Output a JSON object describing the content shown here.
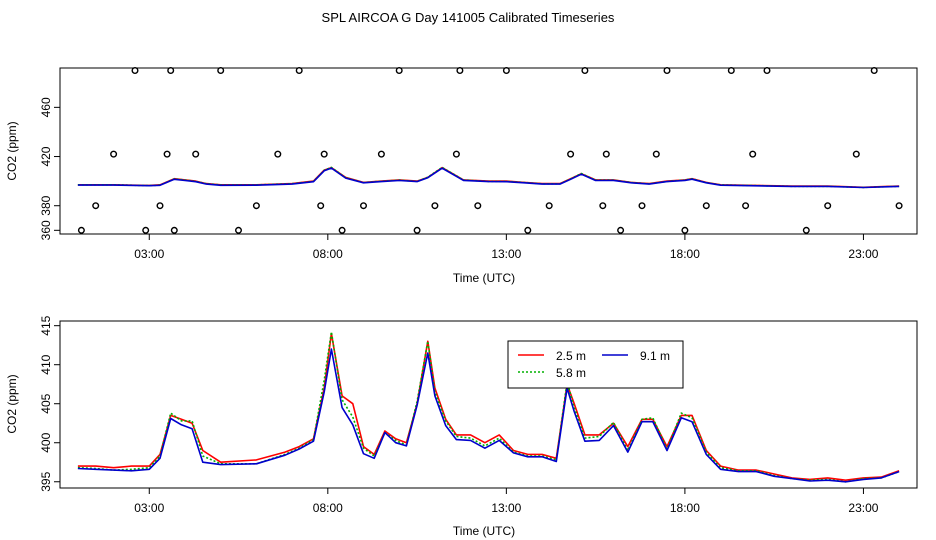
{
  "title": "SPL AIRCOA G  Day 141005  Calibrated Timeseries",
  "chart_data": [
    {
      "type": "line+scatter",
      "ylabel": "CO2 (ppm)",
      "xlabel": "Time (UTC)",
      "xlim": [
        0.5,
        24.5
      ],
      "ylim": [
        357,
        492
      ],
      "xticks": [
        3,
        8,
        13,
        18,
        23
      ],
      "xtick_labels": [
        "03:00",
        "08:00",
        "13:00",
        "18:00",
        "23:00"
      ],
      "yticks": [
        360,
        380,
        420,
        460
      ],
      "ytick_labels": [
        "360",
        "380",
        "420",
        "460"
      ],
      "series": [
        {
          "name": "2.5 m",
          "color": "#ff0000",
          "x": [
            1,
            2,
            3,
            3.3,
            3.7,
            4,
            4.3,
            4.6,
            5,
            6,
            7,
            7.6,
            7.9,
            8.1,
            8.5,
            9,
            9.5,
            10,
            10.5,
            10.8,
            11.2,
            11.8,
            12.5,
            13,
            13.5,
            14,
            14.5,
            14.8,
            15.1,
            15.5,
            16,
            16.5,
            17,
            17.5,
            18,
            18.2,
            18.6,
            19,
            20,
            21,
            22,
            23,
            24
          ],
          "y": [
            397,
            397,
            396.5,
            397,
            402,
            401,
            400,
            398,
            397,
            397,
            398,
            400,
            409,
            411,
            403,
            399,
            400,
            401,
            400,
            403,
            411,
            401,
            400,
            400,
            399,
            398,
            398,
            402,
            406,
            401,
            401,
            399,
            398,
            400,
            401,
            402,
            399,
            397,
            396.5,
            396,
            396,
            395,
            396
          ]
        },
        {
          "name": "5.8 m",
          "color": "#00b000",
          "dash": "2,2",
          "x": [
            1,
            2,
            3,
            3.3,
            3.7,
            4,
            4.3,
            4.6,
            5,
            6,
            7,
            7.6,
            7.9,
            8.1,
            8.5,
            9,
            9.5,
            10,
            10.5,
            10.8,
            11.2,
            11.8,
            12.5,
            13,
            13.5,
            14,
            14.5,
            14.8,
            15.1,
            15.5,
            16,
            16.5,
            17,
            17.5,
            18,
            18.2,
            18.6,
            19,
            20,
            21,
            22,
            23,
            24
          ],
          "y": [
            397,
            397,
            396.4,
            396.8,
            401.8,
            400.9,
            399.8,
            397.9,
            396.9,
            396.9,
            397.9,
            399.8,
            408.8,
            411.2,
            402.8,
            398.8,
            399.9,
            400.8,
            399.8,
            403.2,
            411.2,
            400.9,
            399.8,
            399.8,
            398.9,
            397.8,
            397.8,
            401.8,
            406.2,
            400.8,
            400.8,
            398.9,
            397.8,
            399.8,
            400.9,
            401.9,
            398.8,
            396.9,
            396.4,
            395.8,
            395.8,
            394.9,
            395.8
          ]
        },
        {
          "name": "9.1 m",
          "color": "#0000cc",
          "x": [
            1,
            2,
            3,
            3.3,
            3.7,
            4,
            4.3,
            4.6,
            5,
            6,
            7,
            7.6,
            7.9,
            8.1,
            8.5,
            9,
            9.5,
            10,
            10.5,
            10.8,
            11.2,
            11.8,
            12.5,
            13,
            13.5,
            14,
            14.5,
            14.8,
            15.1,
            15.5,
            16,
            16.5,
            17,
            17.5,
            18,
            18.2,
            18.6,
            19,
            20,
            21,
            22,
            23,
            24
          ],
          "y": [
            396.8,
            396.8,
            396.3,
            396.6,
            401.5,
            400.5,
            399.5,
            397.6,
            396.6,
            396.7,
            397.6,
            399.5,
            408.4,
            410.6,
            402.5,
            398.6,
            399.6,
            400.5,
            399.6,
            402.8,
            410.5,
            400.6,
            399.6,
            399.5,
            398.6,
            397.6,
            397.6,
            401.5,
            405.6,
            400.5,
            400.6,
            398.6,
            397.6,
            399.6,
            400.6,
            401.6,
            398.6,
            396.7,
            396.2,
            395.7,
            395.7,
            394.8,
            395.7
          ]
        }
      ],
      "points": {
        "x": [
          1.1,
          1.5,
          2.0,
          2.6,
          2.9,
          3.3,
          3.5,
          3.6,
          3.7,
          4.3,
          5.0,
          5.5,
          6.0,
          6.6,
          7.2,
          7.8,
          7.9,
          8.4,
          9.0,
          9.5,
          10.0,
          10.5,
          11.0,
          11.6,
          11.7,
          12.2,
          13.0,
          13.6,
          14.2,
          14.8,
          15.2,
          15.7,
          15.8,
          16.2,
          16.8,
          17.2,
          17.5,
          18.0,
          18.6,
          19.3,
          19.7,
          19.9,
          20.3,
          21.4,
          22.0,
          22.8,
          23.3,
          24.0
        ],
        "y": [
          360,
          380,
          422,
          490,
          360,
          380,
          422,
          490,
          360,
          422,
          490,
          360,
          380,
          422,
          490,
          380,
          422,
          360,
          380,
          422,
          490,
          360,
          380,
          422,
          490,
          380,
          490,
          360,
          380,
          422,
          490,
          380,
          422,
          360,
          380,
          422,
          490,
          360,
          380,
          490,
          380,
          422,
          490,
          360,
          380,
          422,
          490,
          380
        ]
      }
    },
    {
      "type": "line",
      "ylabel": "CO2 (ppm)",
      "xlabel": "Time (UTC)",
      "xlim": [
        0.5,
        24.5
      ],
      "ylim": [
        394.2,
        415.6
      ],
      "xticks": [
        3,
        8,
        13,
        18,
        23
      ],
      "xtick_labels": [
        "03:00",
        "08:00",
        "13:00",
        "18:00",
        "23:00"
      ],
      "yticks": [
        395,
        400,
        405,
        410,
        415
      ],
      "ytick_labels": [
        "395",
        "400",
        "405",
        "410",
        "415"
      ],
      "legend": {
        "position": "top-right-center",
        "entries": [
          "2.5 m",
          "5.8 m",
          "9.1 m"
        ]
      },
      "series": [
        {
          "name": "2.5 m",
          "color": "#ff0000",
          "x": [
            1,
            1.5,
            2,
            2.5,
            3,
            3.3,
            3.6,
            3.9,
            4.2,
            4.5,
            5,
            6,
            6.8,
            7.2,
            7.6,
            7.9,
            8.1,
            8.4,
            8.7,
            9.0,
            9.3,
            9.6,
            9.9,
            10.2,
            10.5,
            10.8,
            11.0,
            11.3,
            11.6,
            12.0,
            12.4,
            12.8,
            13.2,
            13.6,
            14.0,
            14.4,
            14.7,
            14.9,
            15.2,
            15.6,
            16.0,
            16.4,
            16.8,
            17.1,
            17.5,
            17.9,
            18.2,
            18.6,
            19.0,
            19.5,
            20,
            20.5,
            21,
            21.5,
            22,
            22.5,
            23,
            23.5,
            24
          ],
          "y": [
            397,
            397,
            396.8,
            397,
            397,
            398.5,
            403.5,
            403,
            402.5,
            399,
            397.5,
            397.8,
            398.8,
            399.5,
            400.5,
            407,
            414,
            406,
            405,
            399.5,
            398.5,
            401.5,
            400.5,
            400,
            405,
            413,
            407,
            403,
            401,
            401,
            400,
            401,
            399,
            398.5,
            398.5,
            398,
            407.5,
            405,
            401,
            401,
            402.5,
            399.5,
            403,
            403,
            399.5,
            403.5,
            403.5,
            399,
            397,
            396.5,
            396.5,
            396,
            395.5,
            395.3,
            395.5,
            395.2,
            395.5,
            395.6,
            396.4
          ]
        },
        {
          "name": "5.8 m",
          "color": "#00b000",
          "dash": "2,2",
          "x": [
            1,
            1.5,
            2,
            2.5,
            3,
            3.3,
            3.6,
            3.9,
            4.2,
            4.5,
            5,
            6,
            6.8,
            7.2,
            7.6,
            7.9,
            8.1,
            8.4,
            8.7,
            9.0,
            9.3,
            9.6,
            9.9,
            10.2,
            10.5,
            10.8,
            11.0,
            11.3,
            11.6,
            12.0,
            12.4,
            12.8,
            13.2,
            13.6,
            14.0,
            14.4,
            14.7,
            14.9,
            15.2,
            15.6,
            16.0,
            16.4,
            16.8,
            17.1,
            17.5,
            17.9,
            18.2,
            18.6,
            19.0,
            19.5,
            20,
            20.5,
            21,
            21.5,
            22,
            22.5,
            23,
            23.5,
            24
          ],
          "y": [
            396.8,
            396.7,
            396.5,
            396.6,
            396.8,
            398.3,
            403.8,
            402.8,
            402.8,
            398.3,
            397.3,
            397.3,
            398.5,
            399.3,
            400.4,
            408,
            414.2,
            405.5,
            403.3,
            399.3,
            398.3,
            401.3,
            400.3,
            399.7,
            405.3,
            413,
            406.5,
            402.8,
            400.8,
            400.6,
            399.6,
            400.6,
            398.8,
            398.3,
            398.3,
            397.8,
            407.8,
            404.5,
            400.6,
            400.8,
            402.6,
            399,
            403,
            403.2,
            399.2,
            403.8,
            403.2,
            398.8,
            396.8,
            396.4,
            396.4,
            395.8,
            395.4,
            395.2,
            395.3,
            395,
            395.4,
            395.5,
            396.3
          ]
        },
        {
          "name": "9.1 m",
          "color": "#0000cc",
          "x": [
            1,
            1.5,
            2,
            2.5,
            3,
            3.3,
            3.6,
            3.9,
            4.2,
            4.5,
            5,
            6,
            6.8,
            7.2,
            7.6,
            7.9,
            8.1,
            8.4,
            8.7,
            9.0,
            9.3,
            9.6,
            9.9,
            10.2,
            10.5,
            10.8,
            11.0,
            11.3,
            11.6,
            12.0,
            12.4,
            12.8,
            13.2,
            13.6,
            14.0,
            14.4,
            14.7,
            14.9,
            15.2,
            15.6,
            16.0,
            16.4,
            16.8,
            17.1,
            17.5,
            17.9,
            18.2,
            18.6,
            19.0,
            19.5,
            20,
            20.5,
            21,
            21.5,
            22,
            22.5,
            23,
            23.5,
            24
          ],
          "y": [
            396.7,
            396.6,
            396.5,
            396.4,
            396.6,
            398,
            403.1,
            402.3,
            401.8,
            397.5,
            397.2,
            397.3,
            398.4,
            399.2,
            400.2,
            406.5,
            412,
            404.5,
            402.3,
            398.6,
            398,
            401.3,
            400,
            399.6,
            404.8,
            411.5,
            406,
            402.2,
            400.4,
            400.3,
            399.3,
            400.3,
            398.7,
            398.2,
            398.2,
            397.6,
            407,
            404,
            400.2,
            400.3,
            402.2,
            398.8,
            402.7,
            402.7,
            399,
            403.2,
            402.7,
            398.5,
            396.6,
            396.3,
            396.3,
            395.7,
            395.4,
            395.1,
            395.2,
            395,
            395.3,
            395.5,
            396.3
          ]
        }
      ]
    }
  ]
}
